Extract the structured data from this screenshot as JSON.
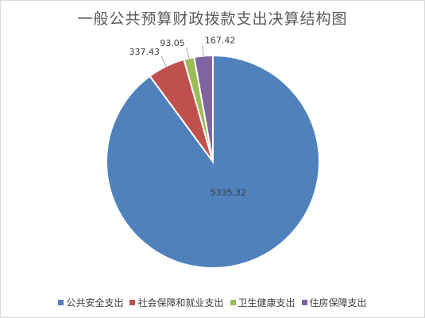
{
  "chart_data": {
    "type": "pie",
    "title": "一般公共预算财政拨款支出决算结构图",
    "series": [
      {
        "name": "公共安全支出",
        "value": 5335.32,
        "label": "5335.32",
        "color": "#4f81bd"
      },
      {
        "name": "社会保障和就业支出",
        "value": 337.43,
        "label": "337.43",
        "color": "#c0504d"
      },
      {
        "name": "卫生健康支出",
        "value": 93.05,
        "label": "93.05",
        "color": "#9bbb59"
      },
      {
        "name": "住房保障支出",
        "value": 167.42,
        "label": "167.42",
        "color": "#8064a2"
      }
    ],
    "legend_position": "bottom"
  }
}
